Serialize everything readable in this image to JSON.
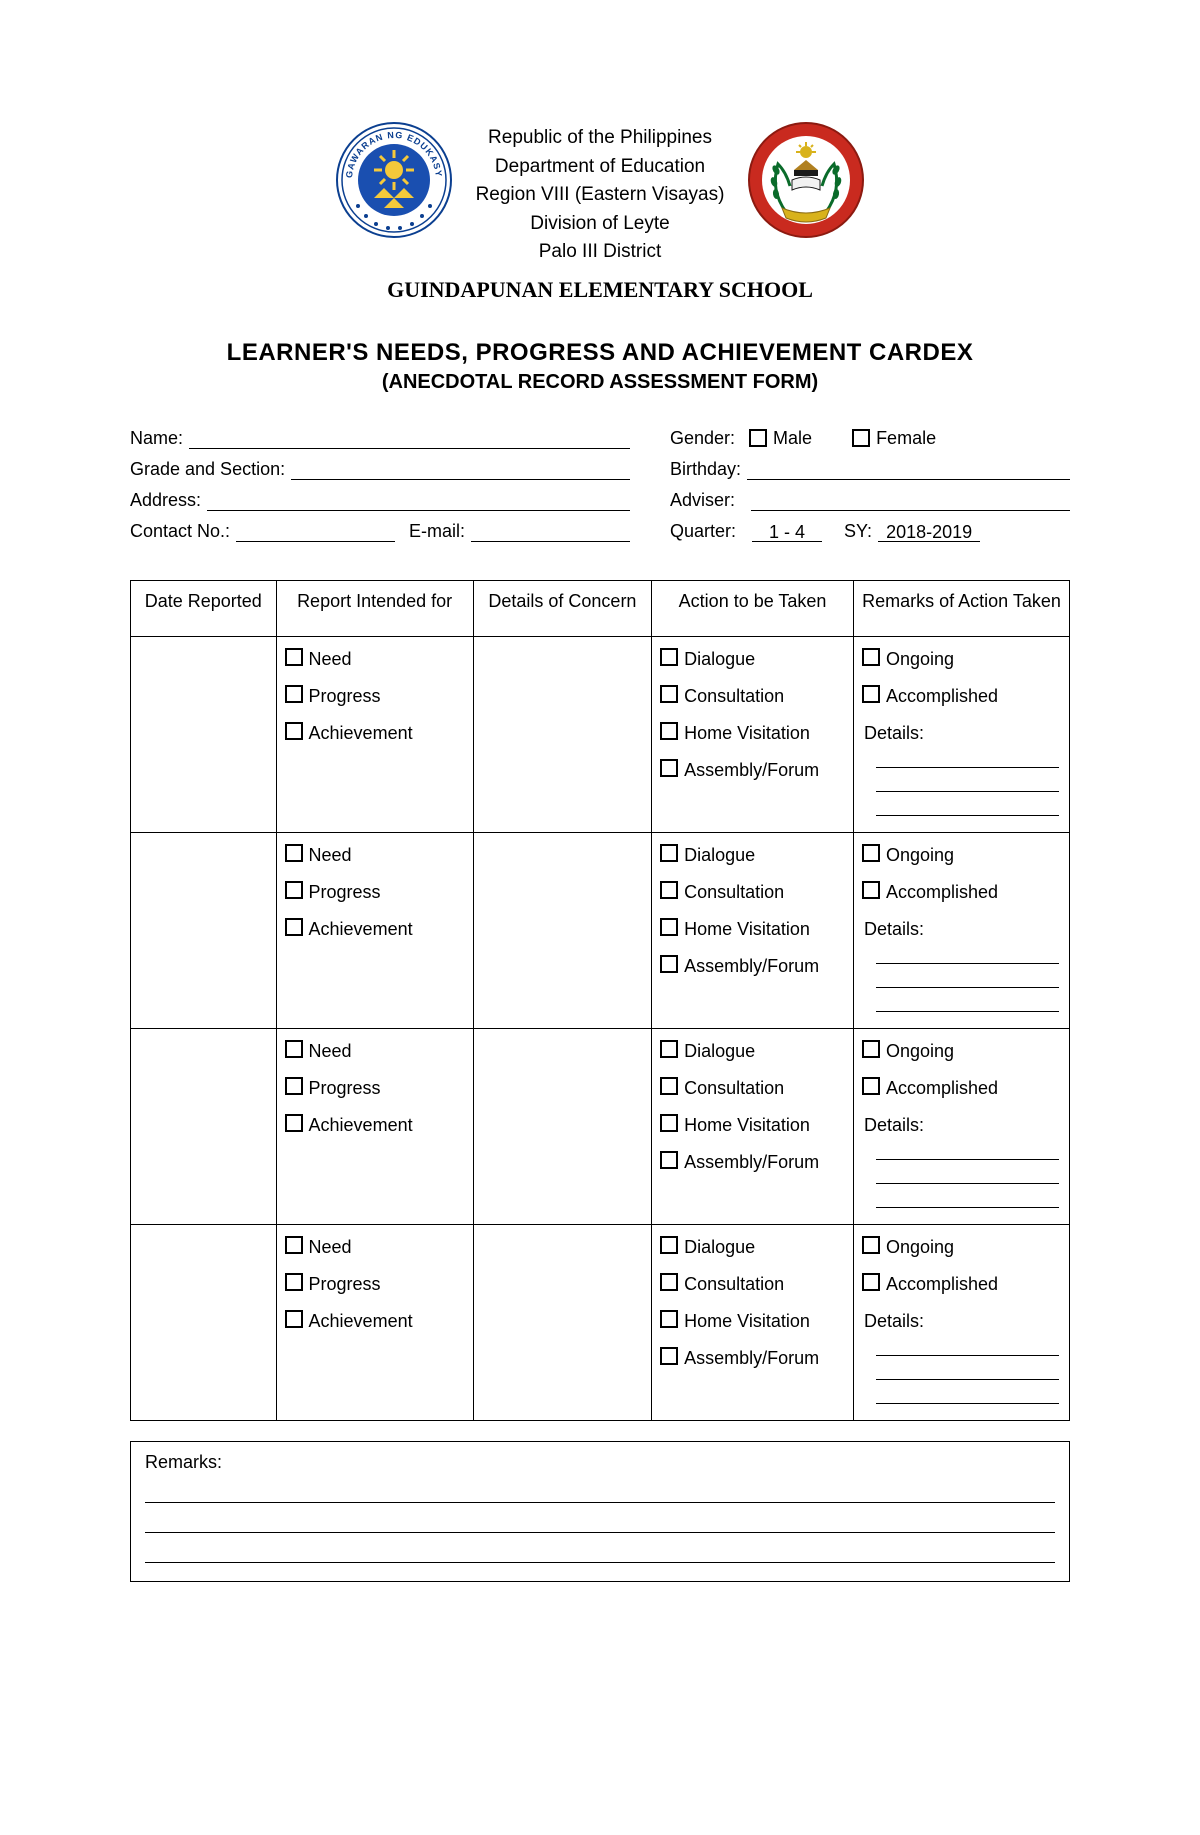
{
  "header": {
    "line1": "Republic of the Philippines",
    "line2": "Department of Education",
    "line3": "Region VIII (Eastern Visayas)",
    "line4": "Division of Leyte",
    "line5": "Palo III District",
    "school": "GUINDAPUNAN ELEMENTARY SCHOOL"
  },
  "title": "LEARNER'S NEEDS, PROGRESS AND ACHIEVEMENT CARDEX",
  "subtitle": "(ANECDOTAL RECORD ASSESSMENT FORM)",
  "info": {
    "name_label": "Name:",
    "grade_label": "Grade and Section:",
    "address_label": "Address:",
    "contact_label": "Contact No.:",
    "email_label": "E-mail:",
    "gender_label": "Gender:",
    "male_label": "Male",
    "female_label": "Female",
    "birthday_label": "Birthday:",
    "adviser_label": "Adviser:",
    "quarter_label": "Quarter:",
    "quarter_value": "1 - 4",
    "sy_label": "SY:",
    "sy_value": "2018-2019"
  },
  "table": {
    "headers": {
      "date": "Date Reported",
      "intended": "Report Intended for",
      "details": "Details of Concern",
      "action": "Action to be Taken",
      "remarks": "Remarks of Action Taken"
    },
    "intended_options": [
      "Need",
      "Progress",
      "Achievement"
    ],
    "action_options": [
      "Dialogue",
      "Consultation",
      "Home Visitation",
      "Assembly/Forum"
    ],
    "remarks_options": [
      "Ongoing",
      "Accomplished"
    ],
    "details_label": "Details:",
    "row_count": 4
  },
  "remarks_label": "Remarks:",
  "seal_left": {
    "outer_stroke": "#0b3f90",
    "inner_fill": "#1a4fb0",
    "text_color": "#0b3f90",
    "top_text": "KAGAWARAN NG EDUKASYON",
    "sun_color": "#f5c93a"
  },
  "seal_right": {
    "outer_stroke": "#8c1a10",
    "ring_fill": "#c92a1f",
    "inner_fill": "#ffffff",
    "wreath_color": "#0a6b2a",
    "ribbon_color": "#d8b21b",
    "center_color": "#1a1a1a"
  }
}
